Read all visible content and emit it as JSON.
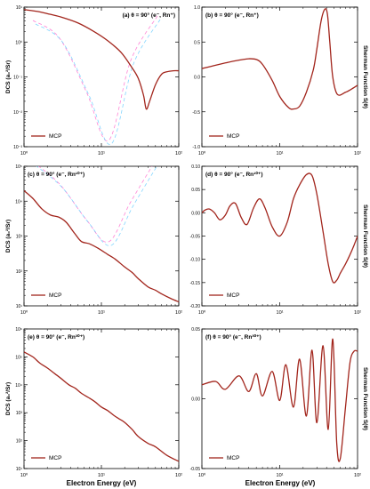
{
  "figure": {
    "xlabel": "Electron Energy (eV)",
    "series_color": "#a2251c",
    "ghost_colors": [
      "#ff66cc",
      "#66ccff"
    ]
  },
  "chart_data": [
    {
      "id": "a",
      "type": "line",
      "title": "(a) θ = 90° (e⁻, Rn⁺)",
      "xscale": "log",
      "xlim": [
        1,
        100
      ],
      "yscale": "log",
      "ylim": [
        0.001,
        10
      ],
      "ylabel": "DCS (a₀²/Sr)",
      "legend": "MCP",
      "legend_position": "bottom-left",
      "xticks": [
        "10⁰",
        "10¹",
        "10²"
      ],
      "yticks": [
        "10¹",
        "10⁰",
        "10⁻¹",
        "10⁻²",
        "10⁻³"
      ],
      "x": [
        1,
        1.5,
        2,
        3,
        5,
        8,
        12,
        18,
        25,
        30,
        35,
        38,
        42,
        50,
        60,
        70,
        85,
        100
      ],
      "y": [
        8.5,
        7.5,
        6.5,
        5.2,
        3.5,
        2.0,
        1.1,
        0.5,
        0.18,
        0.09,
        0.03,
        0.012,
        0.02,
        0.06,
        0.12,
        0.14,
        0.15,
        0.15
      ]
    },
    {
      "id": "b",
      "type": "line",
      "title": "(b) θ = 90° (e⁻, Rn⁺)",
      "xscale": "log",
      "xlim": [
        1,
        100
      ],
      "yscale": "linear",
      "ylim": [
        -1.0,
        1.0
      ],
      "ylabel": "Sherman Function S(θ)",
      "legend": "MCP",
      "legend_position": "bottom-left",
      "xticks": [
        "10⁰",
        "10¹",
        "10²"
      ],
      "yticks": [
        "1.0",
        "0.5",
        "0.0",
        "-0.5",
        "-1.0"
      ],
      "x": [
        1,
        1.3,
        2,
        3,
        4,
        5,
        6,
        8,
        10,
        13,
        15,
        18,
        22,
        27,
        30,
        34,
        38,
        41,
        44,
        48,
        55,
        70,
        85,
        100
      ],
      "y": [
        0.12,
        0.15,
        0.2,
        0.24,
        0.26,
        0.25,
        0.18,
        -0.05,
        -0.28,
        -0.44,
        -0.46,
        -0.42,
        -0.22,
        0.1,
        0.4,
        0.8,
        0.97,
        0.9,
        0.5,
        0.0,
        -0.25,
        -0.22,
        -0.17,
        -0.12
      ]
    },
    {
      "id": "c",
      "type": "line",
      "title": "(c) θ = 90° (e⁻, Rn¹⁰⁺)",
      "xscale": "log",
      "xlim": [
        1,
        100
      ],
      "yscale": "log",
      "ylim": [
        10,
        100000
      ],
      "ylabel": "DCS (a₀²/Sr)",
      "legend": "MCP",
      "legend_position": "bottom-left",
      "xticks": [
        "10⁰",
        "10¹",
        "10²"
      ],
      "yticks": [
        "10⁵",
        "10⁴",
        "10³",
        "10²",
        "10¹"
      ],
      "x": [
        1,
        1.3,
        1.7,
        2.2,
        2.8,
        3.5,
        4.5,
        5.5,
        7,
        9,
        12,
        15,
        20,
        25,
        30,
        40,
        50,
        60,
        80,
        100
      ],
      "y": [
        20000,
        12000,
        6000,
        4000,
        3500,
        2500,
        1200,
        700,
        600,
        450,
        300,
        220,
        130,
        90,
        60,
        35,
        28,
        22,
        16,
        13
      ]
    },
    {
      "id": "d",
      "type": "line",
      "title": "(d) θ = 90° (e⁻, Rn¹⁰⁺)",
      "xscale": "log",
      "xlim": [
        1,
        100
      ],
      "yscale": "linear",
      "ylim": [
        -0.2,
        0.1
      ],
      "ylabel": "Sherman Function S(θ)",
      "legend": "MCP",
      "legend_position": "bottom-left",
      "xticks": [
        "10⁰",
        "10¹",
        "10²"
      ],
      "yticks": [
        "0.10",
        "0.05",
        "0.00",
        "-0.05",
        "-0.10",
        "-0.15",
        "-0.20"
      ],
      "x": [
        1,
        1.1,
        1.25,
        1.45,
        1.7,
        2.0,
        2.3,
        2.7,
        3.2,
        3.8,
        4.6,
        5.5,
        6.5,
        8,
        10,
        12.5,
        15,
        18,
        22,
        26,
        30,
        36,
        42,
        48,
        54,
        60,
        70,
        80,
        90,
        100
      ],
      "y": [
        0.0,
        0.006,
        0.008,
        0.0,
        -0.015,
        -0.005,
        0.015,
        0.02,
        -0.01,
        -0.025,
        0.01,
        0.03,
        0.01,
        -0.03,
        -0.05,
        -0.02,
        0.03,
        0.06,
        0.082,
        0.08,
        0.04,
        -0.04,
        -0.11,
        -0.148,
        -0.145,
        -0.13,
        -0.11,
        -0.09,
        -0.07,
        -0.05
      ]
    },
    {
      "id": "e",
      "type": "line",
      "title": "(e) θ = 90° (e⁻, Rn³⁰⁺)",
      "xscale": "log",
      "xlim": [
        1,
        100
      ],
      "yscale": "log",
      "ylim": [
        10,
        1000000
      ],
      "ylabel": "DCS (a₀²/Sr)",
      "legend": "MCP",
      "legend_position": "bottom-left",
      "xticks": [
        "10⁰",
        "10¹",
        "10²"
      ],
      "yticks": [
        "10⁶",
        "10⁵",
        "10⁴",
        "10³",
        "10²",
        "10¹"
      ],
      "x": [
        1,
        1.3,
        1.6,
        2,
        2.5,
        3,
        3.8,
        4.6,
        5.5,
        6.8,
        8.2,
        10,
        12,
        14.5,
        17,
        20,
        25,
        30,
        40,
        50,
        70,
        100
      ],
      "y": [
        150000,
        100000,
        60000,
        40000,
        25000,
        17000,
        10000,
        7500,
        5000,
        3500,
        2500,
        1600,
        1200,
        800,
        600,
        450,
        250,
        140,
        80,
        60,
        30,
        18
      ]
    },
    {
      "id": "f",
      "type": "line",
      "title": "(f) θ = 90° (e⁻, Rn³⁰⁺)",
      "xscale": "log",
      "xlim": [
        1,
        100
      ],
      "yscale": "linear",
      "ylim": [
        -0.075,
        0.05
      ],
      "ylabel": "Sherman Function S(θ)",
      "legend": "MCP",
      "legend_position": "bottom-left",
      "xticks": [
        "10⁰",
        "10¹",
        "10²"
      ],
      "yticks": [
        "0.05",
        "0.00",
        "-0.05"
      ],
      "x": [
        1,
        1.5,
        2,
        3,
        4,
        5,
        6,
        8,
        10,
        12,
        15,
        18,
        22,
        26,
        30,
        36,
        42,
        48,
        54,
        60,
        70,
        80,
        90,
        100
      ],
      "y": [
        0.0,
        0.003,
        -0.004,
        0.008,
        -0.006,
        0.01,
        -0.01,
        0.012,
        -0.014,
        0.018,
        -0.02,
        0.023,
        -0.028,
        0.031,
        -0.034,
        0.035,
        -0.04,
        0.041,
        -0.052,
        -0.066,
        -0.02,
        0.02,
        0.03,
        0.03
      ]
    }
  ]
}
